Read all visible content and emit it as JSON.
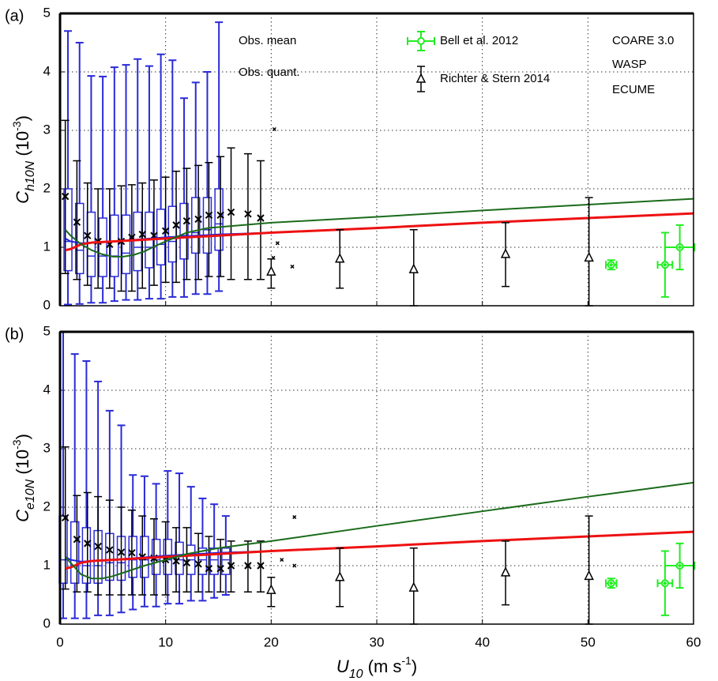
{
  "chart_data": [
    {
      "type": "combo",
      "panel_label": "(a)",
      "ylabel": {
        "main": "C",
        "sub": "h10N",
        "rest": " (10",
        "sup": "-3",
        "end": ")"
      },
      "xlim": [
        0,
        60
      ],
      "ylim": [
        0,
        5
      ],
      "xticks": [
        0,
        10,
        20,
        30,
        40,
        50,
        60
      ],
      "yticks": [
        0,
        1,
        2,
        3,
        4,
        5
      ],
      "grid": true,
      "show_xtick_labels": false,
      "legend": true,
      "series": [
        {
          "type": "box",
          "name": "Obs. quant.",
          "color": "#2a2ad8",
          "x": [
            0.75,
            1.85,
            2.95,
            4.05,
            5.15,
            6.25,
            7.35,
            8.45,
            9.55,
            10.65,
            11.75,
            12.85,
            13.95,
            15.05
          ],
          "values": [
            [
              0.02,
              0.6,
              1.1,
              2.0,
              4.7
            ],
            [
              0.03,
              0.55,
              0.95,
              1.75,
              4.5
            ],
            [
              0.05,
              0.5,
              0.85,
              1.6,
              3.93
            ],
            [
              0.05,
              0.5,
              0.85,
              1.5,
              3.92
            ],
            [
              0.08,
              0.5,
              0.85,
              1.55,
              4.08
            ],
            [
              0.1,
              0.55,
              0.9,
              1.55,
              4.12
            ],
            [
              0.1,
              0.6,
              1.0,
              1.6,
              4.22
            ],
            [
              0.12,
              0.65,
              1.0,
              1.6,
              4.1
            ],
            [
              0.12,
              0.7,
              1.05,
              1.65,
              4.3
            ],
            [
              0.15,
              0.75,
              1.1,
              1.7,
              4.2
            ],
            [
              0.15,
              0.8,
              1.2,
              1.75,
              3.55
            ],
            [
              0.2,
              0.9,
              1.25,
              1.85,
              3.82
            ],
            [
              0.2,
              0.9,
              1.3,
              1.85,
              4.0
            ],
            [
              0.25,
              0.95,
              1.4,
              2.0,
              4.85
            ]
          ]
        },
        {
          "type": "errorbar",
          "name": "Obs. mean",
          "color": "#000000",
          "marker": "x",
          "x": [
            0.5,
            1.6,
            2.6,
            3.6,
            4.7,
            5.8,
            6.8,
            7.8,
            8.9,
            10.0,
            11.0,
            12.0,
            13.1,
            14.1,
            15.2,
            16.2,
            17.8,
            19.0
          ],
          "values": [
            1.87,
            1.43,
            1.2,
            1.1,
            1.05,
            1.1,
            1.17,
            1.22,
            1.2,
            1.28,
            1.38,
            1.45,
            1.48,
            1.55,
            1.55,
            1.6,
            1.57,
            1.5
          ],
          "lower": [
            0.55,
            0.45,
            0.35,
            0.3,
            0.3,
            0.25,
            0.25,
            0.3,
            0.35,
            0.4,
            0.4,
            0.45,
            0.45,
            0.5,
            0.5,
            0.45,
            0.45,
            0.45
          ],
          "upper": [
            3.17,
            2.48,
            2.1,
            2.0,
            2.0,
            2.05,
            2.07,
            2.1,
            2.15,
            2.2,
            2.3,
            2.35,
            2.4,
            2.45,
            2.55,
            2.7,
            2.6,
            2.48
          ]
        },
        {
          "type": "scatter",
          "color": "#000000",
          "x": [
            20.3,
            20.6,
            20.2,
            22.0
          ],
          "values": [
            3.02,
            1.07,
            0.82,
            0.67
          ]
        },
        {
          "type": "line",
          "name": "COARE 3.0",
          "color": "#2020e0",
          "x": [
            0.5,
            1,
            2,
            3,
            5,
            10,
            15,
            20,
            22.5
          ],
          "values": [
            1.15,
            1.1,
            1.07,
            1.08,
            1.1,
            1.17,
            1.22,
            1.25,
            1.27
          ]
        },
        {
          "type": "line",
          "name": "WASP",
          "color": "#ee1111",
          "x": [
            0.5,
            1,
            2,
            3,
            5,
            10,
            20,
            30,
            40,
            50,
            60
          ],
          "values": [
            0.95,
            0.97,
            1.05,
            1.08,
            1.1,
            1.15,
            1.25,
            1.33,
            1.42,
            1.5,
            1.58
          ]
        },
        {
          "type": "line",
          "name": "ECUME",
          "color": "#1a6b1a",
          "x": [
            0.5,
            1,
            2,
            3,
            4,
            5,
            6,
            7,
            8,
            9,
            10,
            12,
            14,
            16,
            20,
            30,
            40,
            50,
            60
          ],
          "values": [
            1.3,
            1.2,
            1.05,
            0.95,
            0.88,
            0.84,
            0.84,
            0.87,
            0.93,
            1.02,
            1.1,
            1.25,
            1.33,
            1.36,
            1.42,
            1.52,
            1.63,
            1.73,
            1.83
          ]
        },
        {
          "type": "errorbar",
          "name": "Richter & Stern 2014",
          "color": "#000000",
          "marker": "triangle",
          "x": [
            20.0,
            26.5,
            33.5,
            42.2,
            50.1
          ],
          "values": [
            0.58,
            0.8,
            0.62,
            0.88,
            0.82
          ],
          "lower": [
            0.3,
            0.3,
            0.0,
            0.33,
            0.0
          ],
          "upper": [
            0.8,
            1.3,
            1.3,
            1.42,
            1.85
          ]
        },
        {
          "type": "xyerror",
          "name": "Bell et al. 2012",
          "color": "#22ee22",
          "x": [
            52.2,
            57.3,
            58.7
          ],
          "values": [
            0.7,
            0.7,
            1.0
          ],
          "xerr": [
            0.5,
            0.7,
            1.4
          ],
          "yerr": [
            0.08,
            0.55,
            0.38
          ]
        }
      ]
    },
    {
      "type": "combo",
      "panel_label": "(b)",
      "ylabel": {
        "main": "C",
        "sub": "e10N",
        "rest": " (10",
        "sup": "-3",
        "end": ")"
      },
      "xlabel": {
        "main": "U",
        "sub": "10",
        "rest": " (m s",
        "sup": "-1",
        "end": ")"
      },
      "xlim": [
        0,
        60
      ],
      "ylim": [
        0,
        5
      ],
      "xticks": [
        0,
        10,
        20,
        30,
        40,
        50,
        60
      ],
      "yticks": [
        0,
        1,
        2,
        3,
        4,
        5
      ],
      "grid": true,
      "show_xtick_labels": true,
      "legend": false,
      "series": [
        {
          "type": "box",
          "color": "#2a2ad8",
          "x": [
            0.3,
            1.4,
            2.5,
            3.6,
            4.7,
            5.8,
            6.9,
            8.0,
            9.1,
            10.2,
            11.3,
            12.4,
            13.5,
            14.6,
            15.7
          ],
          "values": [
            [
              0.1,
              0.7,
              1.1,
              1.85,
              5.0
            ],
            [
              0.1,
              0.7,
              1.0,
              1.75,
              4.62
            ],
            [
              0.1,
              0.7,
              1.0,
              1.65,
              4.5
            ],
            [
              0.15,
              0.7,
              1.0,
              1.6,
              4.15
            ],
            [
              0.15,
              0.75,
              1.05,
              1.55,
              3.65
            ],
            [
              0.2,
              0.75,
              1.05,
              1.5,
              3.4
            ],
            [
              0.25,
              0.8,
              1.1,
              1.5,
              2.55
            ],
            [
              0.3,
              0.8,
              1.1,
              1.5,
              2.53
            ],
            [
              0.3,
              0.85,
              1.1,
              1.45,
              2.4
            ],
            [
              0.35,
              0.85,
              1.1,
              1.45,
              2.62
            ],
            [
              0.35,
              0.85,
              1.1,
              1.4,
              2.58
            ],
            [
              0.4,
              0.85,
              1.1,
              1.35,
              2.35
            ],
            [
              0.4,
              0.85,
              1.1,
              1.3,
              2.15
            ],
            [
              0.45,
              0.85,
              1.1,
              1.3,
              2.05
            ],
            [
              0.5,
              0.85,
              1.1,
              1.3,
              1.85
            ]
          ]
        },
        {
          "type": "errorbar",
          "color": "#000000",
          "marker": "x",
          "x": [
            0.5,
            1.6,
            2.6,
            3.6,
            4.7,
            5.8,
            6.8,
            7.8,
            8.9,
            10.0,
            11.0,
            12.0,
            13.1,
            14.1,
            15.2,
            16.2,
            17.8,
            19.0
          ],
          "values": [
            1.82,
            1.45,
            1.38,
            1.33,
            1.27,
            1.23,
            1.22,
            1.15,
            1.13,
            1.1,
            1.08,
            1.05,
            1.03,
            0.95,
            0.95,
            1.0,
            1.0,
            1.0
          ],
          "lower": [
            0.6,
            0.55,
            0.55,
            0.5,
            0.5,
            0.5,
            0.5,
            0.5,
            0.5,
            0.5,
            0.55,
            0.55,
            0.55,
            0.55,
            0.55,
            0.55,
            0.55,
            0.55
          ],
          "upper": [
            3.03,
            2.2,
            2.25,
            2.18,
            2.12,
            2.0,
            1.95,
            1.85,
            1.8,
            1.75,
            1.65,
            1.65,
            1.55,
            1.5,
            1.45,
            1.42,
            1.42,
            1.42
          ]
        },
        {
          "type": "scatter",
          "color": "#000000",
          "x": [
            21.0,
            22.2,
            22.2
          ],
          "values": [
            1.1,
            1.83,
            1.0
          ]
        },
        {
          "type": "line",
          "color": "#2020e0",
          "x": [
            0.5,
            1,
            2,
            3,
            5,
            10,
            15,
            20,
            22.5
          ],
          "values": [
            1.15,
            1.1,
            1.07,
            1.08,
            1.1,
            1.17,
            1.22,
            1.25,
            1.27
          ]
        },
        {
          "type": "line",
          "color": "#ee1111",
          "x": [
            0.5,
            1,
            2,
            3,
            5,
            10,
            20,
            30,
            40,
            50,
            60
          ],
          "values": [
            0.95,
            0.97,
            1.05,
            1.08,
            1.1,
            1.15,
            1.25,
            1.33,
            1.42,
            1.5,
            1.58
          ]
        },
        {
          "type": "line",
          "color": "#1a6b1a",
          "x": [
            0.5,
            1,
            2,
            3,
            4,
            5,
            6,
            8,
            10,
            12,
            15,
            20,
            30,
            40,
            50,
            60
          ],
          "values": [
            1.15,
            1.05,
            0.85,
            0.78,
            0.78,
            0.82,
            0.88,
            1.0,
            1.1,
            1.2,
            1.3,
            1.42,
            1.68,
            1.93,
            2.18,
            2.42
          ]
        },
        {
          "type": "errorbar",
          "color": "#000000",
          "marker": "triangle",
          "x": [
            20.0,
            26.5,
            33.5,
            42.2,
            50.1
          ],
          "values": [
            0.58,
            0.8,
            0.62,
            0.88,
            0.82
          ],
          "lower": [
            0.3,
            0.3,
            0.0,
            0.33,
            0.0
          ],
          "upper": [
            0.8,
            1.3,
            1.3,
            1.42,
            1.85
          ]
        },
        {
          "type": "xyerror",
          "color": "#22ee22",
          "x": [
            52.2,
            57.3,
            58.7
          ],
          "values": [
            0.7,
            0.7,
            1.0
          ],
          "xerr": [
            0.5,
            0.7,
            1.4
          ],
          "yerr": [
            0.08,
            0.55,
            0.38
          ]
        }
      ]
    }
  ]
}
